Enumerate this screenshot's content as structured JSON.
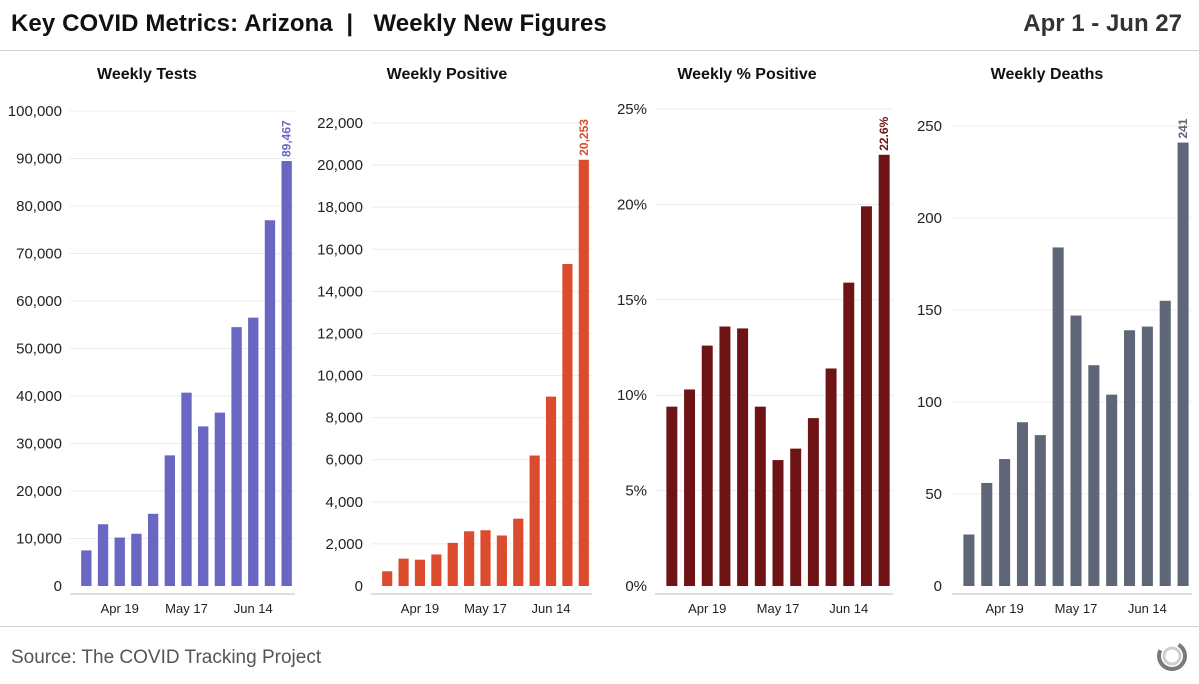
{
  "header": {
    "title": "Key COVID Metrics: Arizona  |   Weekly New Figures",
    "date_range": "Apr 1 - Jun 27"
  },
  "footer": {
    "source": "Source: The COVID Tracking Project",
    "logo_icon": "covid-tracking-project-logo-icon"
  },
  "chart_data": [
    {
      "type": "bar",
      "title": "Weekly Tests",
      "color": "#6a67c2",
      "ylim": [
        0,
        100000
      ],
      "yticks": [
        0,
        10000,
        20000,
        30000,
        40000,
        50000,
        60000,
        70000,
        80000,
        90000,
        100000
      ],
      "ytick_labels": [
        "0",
        "10,000",
        "20,000",
        "30,000",
        "40,000",
        "50,000",
        "60,000",
        "70,000",
        "80,000",
        "90,000",
        "100,000"
      ],
      "xtick_labels": [
        "Apr 19",
        "May 17",
        "Jun 14"
      ],
      "xtick_index": [
        2,
        6,
        10
      ],
      "values": [
        7500,
        13000,
        10200,
        11000,
        15200,
        27500,
        40700,
        33600,
        36500,
        54500,
        56500,
        77000,
        89467
      ],
      "data_label": "89,467"
    },
    {
      "type": "bar",
      "title": "Weekly Positive",
      "color": "#dd4b2f",
      "ylim": [
        0,
        22000
      ],
      "yticks": [
        0,
        2000,
        4000,
        6000,
        8000,
        10000,
        12000,
        14000,
        16000,
        18000,
        20000,
        22000
      ],
      "ytick_labels": [
        "0",
        "2,000",
        "4,000",
        "6,000",
        "8,000",
        "10,000",
        "12,000",
        "14,000",
        "16,000",
        "18,000",
        "20,000",
        "22,000"
      ],
      "xtick_labels": [
        "Apr 19",
        "May 17",
        "Jun 14"
      ],
      "xtick_index": [
        2,
        6,
        10
      ],
      "values": [
        700,
        1300,
        1250,
        1500,
        2050,
        2600,
        2650,
        2400,
        3200,
        6200,
        9000,
        15300,
        20253
      ],
      "data_label": "20,253"
    },
    {
      "type": "bar",
      "title": "Weekly % Positive",
      "color": "#6e1416",
      "ylim": [
        0,
        25
      ],
      "yticks": [
        0,
        5,
        10,
        15,
        20,
        25
      ],
      "ytick_labels": [
        "0%",
        "5%",
        "10%",
        "15%",
        "20%",
        "25%"
      ],
      "xtick_labels": [
        "Apr 19",
        "May 17",
        "Jun 14"
      ],
      "xtick_index": [
        2,
        6,
        10
      ],
      "values": [
        9.4,
        10.3,
        12.6,
        13.6,
        13.5,
        9.4,
        6.6,
        7.2,
        8.8,
        11.4,
        15.9,
        19.9,
        22.6
      ],
      "data_label": "22.6%"
    },
    {
      "type": "bar",
      "title": "Weekly Deaths",
      "color": "#5e6678",
      "ylim": [
        0,
        250
      ],
      "yticks": [
        0,
        50,
        100,
        150,
        200,
        250
      ],
      "ytick_labels": [
        "0",
        "50",
        "100",
        "150",
        "200",
        "250"
      ],
      "xtick_labels": [
        "Apr 19",
        "May 17",
        "Jun 14"
      ],
      "xtick_index": [
        2,
        6,
        10
      ],
      "values": [
        28,
        56,
        69,
        89,
        82,
        184,
        147,
        120,
        104,
        139,
        141,
        155,
        241
      ],
      "data_label": "241"
    }
  ]
}
